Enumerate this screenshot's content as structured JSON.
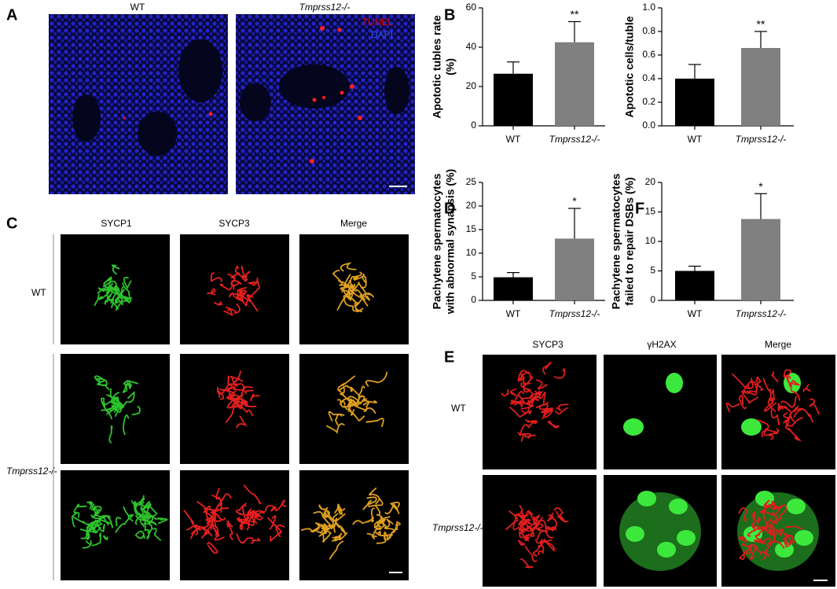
{
  "panel_labels": [
    "A",
    "B",
    "C",
    "D",
    "E",
    "F"
  ],
  "panel_a": {
    "columns": [
      "WT",
      "Tmprss12-/-"
    ],
    "legend": [
      "TUNEL",
      "DAPI"
    ]
  },
  "panel_c": {
    "columns": [
      "SYCP1",
      "SYCP3",
      "Merge"
    ],
    "rows": [
      "WT",
      "Tmprss12-/-"
    ]
  },
  "panel_e": {
    "columns": [
      "SYCP3",
      "γH2AX",
      "Merge"
    ],
    "rows": [
      "WT",
      "Tmprss12-/-"
    ]
  },
  "chart_data": [
    {
      "type": "bar",
      "ylabel": [
        "Apototic tubles rate",
        "(%)"
      ],
      "categories": [
        "WT",
        "Tmprss12-/-"
      ],
      "values": [
        26.5,
        42.5
      ],
      "errors": [
        6,
        10.5
      ],
      "colors": [
        "#000000",
        "#808080"
      ],
      "ylim": [
        0,
        60
      ],
      "yticks": [
        0,
        20,
        40,
        60
      ],
      "annotations": [
        "**"
      ]
    },
    {
      "type": "bar",
      "ylabel": [
        "Apototic cells/tuble"
      ],
      "categories": [
        "WT",
        "Tmprss12-/-"
      ],
      "values": [
        0.4,
        0.66
      ],
      "errors": [
        0.12,
        0.14
      ],
      "colors": [
        "#000000",
        "#808080"
      ],
      "ylim": [
        0,
        1
      ],
      "yticks": [
        {
          "value": 0,
          "label": "0.0"
        },
        0.2,
        0.4,
        0.6,
        0.8,
        {
          "value": 1,
          "label": "1.0"
        }
      ],
      "annotations": [
        "**"
      ]
    },
    {
      "type": "bar",
      "ylabel": [
        "Pachytene spermatocytes",
        "with abnormal synapsis (%)"
      ],
      "categories": [
        "WT",
        "Tmprss12-/-"
      ],
      "values": [
        4.9,
        13.1
      ],
      "errors": [
        1.0,
        6.4
      ],
      "colors": [
        "#000000",
        "#808080"
      ],
      "ylim": [
        0,
        25
      ],
      "yticks": [
        0,
        5,
        10,
        15,
        20,
        25
      ],
      "annotations": [
        "*"
      ]
    },
    {
      "type": "bar",
      "ylabel": [
        "Pachytene spermatocytes",
        "failed to repair DSBs (%)"
      ],
      "categories": [
        "WT",
        "Tmprss12-/-"
      ],
      "values": [
        5.0,
        13.8
      ],
      "errors": [
        0.8,
        4.3
      ],
      "colors": [
        "#000000",
        "#808080"
      ],
      "ylim": [
        0,
        20
      ],
      "yticks": [
        0,
        5,
        10,
        15,
        20
      ],
      "annotations": [
        "*"
      ]
    }
  ]
}
